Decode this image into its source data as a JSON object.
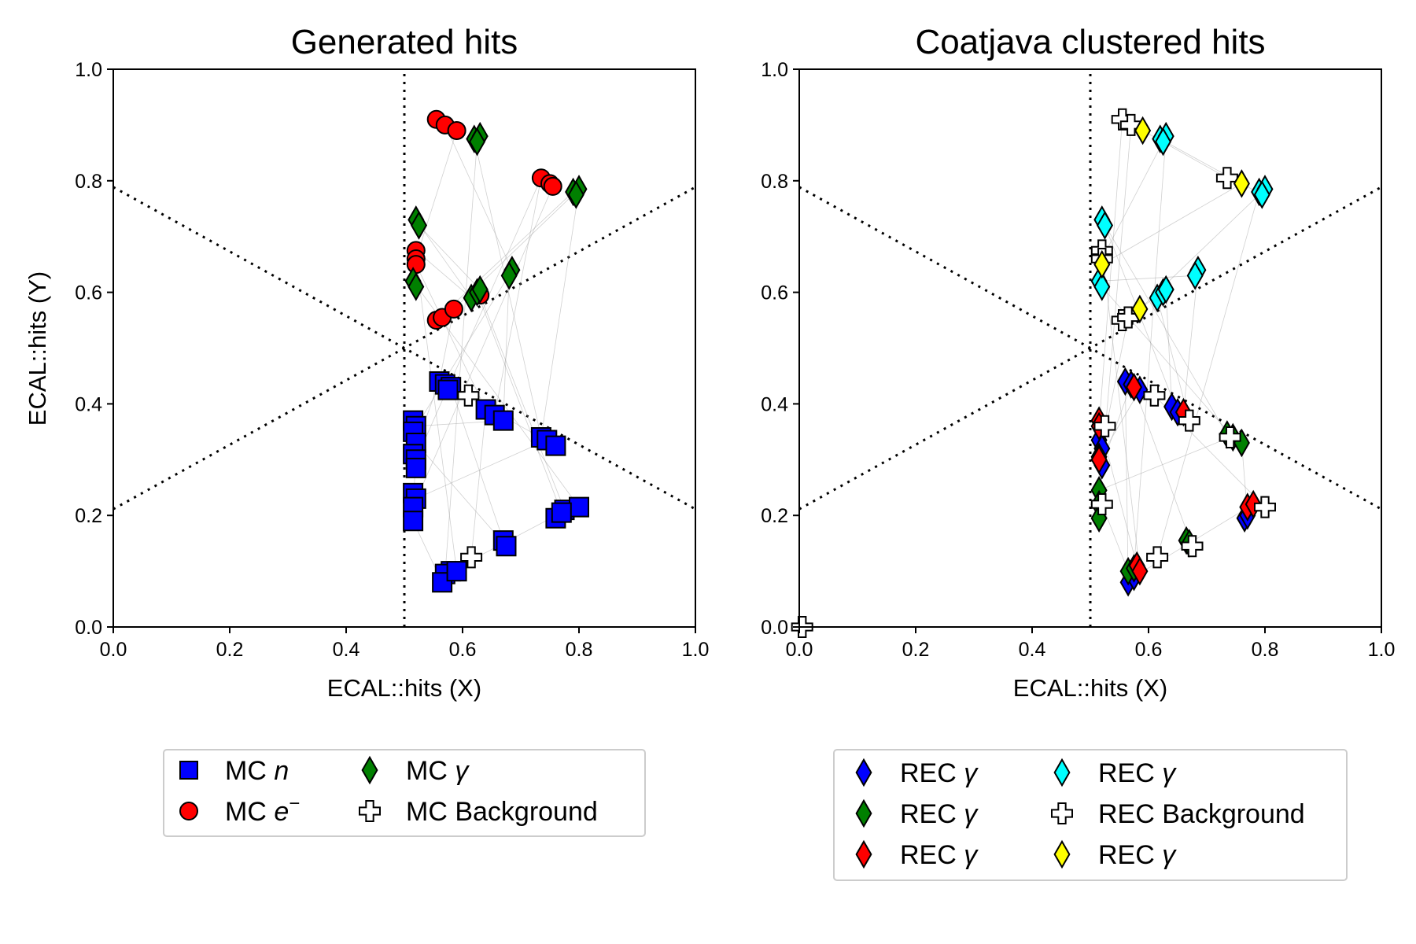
{
  "chart_data": [
    {
      "type": "scatter",
      "title": "Generated hits",
      "xlabel": "ECAL::hits (X)",
      "ylabel": "ECAL::hits (Y)",
      "xlim": [
        0.0,
        1.0
      ],
      "ylim": [
        0.0,
        1.0
      ],
      "xticks": [
        "0.0",
        "0.2",
        "0.4",
        "0.6",
        "0.8",
        "1.0"
      ],
      "yticks": [
        "0.0",
        "0.2",
        "0.4",
        "0.6",
        "0.8",
        "1.0"
      ],
      "grid": false,
      "legend_position": "below",
      "series": [
        {
          "name": "MC n",
          "label_main": "MC ",
          "label_italic": "n",
          "label_sup": "",
          "marker": "square",
          "color": "#0000ff",
          "points": [
            [
              0.56,
              0.44
            ],
            [
              0.57,
              0.435
            ],
            [
              0.58,
              0.43
            ],
            [
              0.575,
              0.425
            ],
            [
              0.64,
              0.39
            ],
            [
              0.655,
              0.38
            ],
            [
              0.67,
              0.37
            ],
            [
              0.515,
              0.37
            ],
            [
              0.52,
              0.36
            ],
            [
              0.515,
              0.35
            ],
            [
              0.52,
              0.33
            ],
            [
              0.515,
              0.31
            ],
            [
              0.52,
              0.3
            ],
            [
              0.52,
              0.285
            ],
            [
              0.735,
              0.34
            ],
            [
              0.745,
              0.335
            ],
            [
              0.76,
              0.325
            ],
            [
              0.515,
              0.24
            ],
            [
              0.52,
              0.23
            ],
            [
              0.515,
              0.215
            ],
            [
              0.515,
              0.19
            ],
            [
              0.76,
              0.195
            ],
            [
              0.775,
              0.21
            ],
            [
              0.8,
              0.215
            ],
            [
              0.77,
              0.205
            ],
            [
              0.67,
              0.155
            ],
            [
              0.675,
              0.145
            ],
            [
              0.58,
              0.1
            ],
            [
              0.57,
              0.095
            ],
            [
              0.565,
              0.08
            ],
            [
              0.59,
              0.1
            ]
          ]
        },
        {
          "name": "MC e-",
          "label_main": "MC ",
          "label_italic": "e",
          "label_sup": "−",
          "marker": "circle",
          "color": "#ff0000",
          "points": [
            [
              0.555,
              0.91
            ],
            [
              0.57,
              0.9
            ],
            [
              0.59,
              0.89
            ],
            [
              0.735,
              0.805
            ],
            [
              0.75,
              0.795
            ],
            [
              0.755,
              0.79
            ],
            [
              0.52,
              0.675
            ],
            [
              0.52,
              0.66
            ],
            [
              0.52,
              0.65
            ],
            [
              0.555,
              0.55
            ],
            [
              0.565,
              0.555
            ],
            [
              0.585,
              0.57
            ],
            [
              0.63,
              0.595
            ]
          ]
        },
        {
          "name": "MC γ",
          "label_main": "MC ",
          "label_italic": "γ",
          "label_sup": "",
          "marker": "diamond",
          "color": "#008000",
          "points": [
            [
              0.62,
              0.875
            ],
            [
              0.63,
              0.88
            ],
            [
              0.625,
              0.87
            ],
            [
              0.79,
              0.78
            ],
            [
              0.8,
              0.785
            ],
            [
              0.795,
              0.775
            ],
            [
              0.52,
              0.73
            ],
            [
              0.525,
              0.72
            ],
            [
              0.685,
              0.64
            ],
            [
              0.68,
              0.63
            ],
            [
              0.515,
              0.62
            ],
            [
              0.52,
              0.61
            ],
            [
              0.615,
              0.59
            ],
            [
              0.625,
              0.6
            ],
            [
              0.63,
              0.605
            ]
          ]
        },
        {
          "name": "MC Background",
          "label_main": "MC Background",
          "label_italic": "",
          "label_sup": "",
          "marker": "plus",
          "color": "#ffffff",
          "points": [
            [
              0.61,
              0.415
            ],
            [
              0.615,
              0.125
            ]
          ]
        }
      ]
    },
    {
      "type": "scatter",
      "title": "Coatjava clustered hits",
      "xlabel": "ECAL::hits (X)",
      "ylabel": "",
      "xlim": [
        0.0,
        1.0
      ],
      "ylim": [
        0.0,
        1.0
      ],
      "xticks": [
        "0.0",
        "0.2",
        "0.4",
        "0.6",
        "0.8",
        "1.0"
      ],
      "yticks": [
        "0.0",
        "0.2",
        "0.4",
        "0.6",
        "0.8",
        "1.0"
      ],
      "grid": false,
      "legend_position": "below",
      "series": [
        {
          "name": "REC γ (blue)",
          "label_main": "REC ",
          "label_italic": "γ",
          "label_sup": "",
          "marker": "diamond",
          "color": "#0000ff",
          "points": [
            [
              0.56,
              0.44
            ],
            [
              0.57,
              0.435
            ],
            [
              0.585,
              0.425
            ],
            [
              0.64,
              0.395
            ],
            [
              0.65,
              0.385
            ],
            [
              0.515,
              0.335
            ],
            [
              0.52,
              0.32
            ],
            [
              0.515,
              0.305
            ],
            [
              0.52,
              0.29
            ],
            [
              0.765,
              0.195
            ],
            [
              0.77,
              0.2
            ],
            [
              0.565,
              0.08
            ],
            [
              0.575,
              0.09
            ]
          ]
        },
        {
          "name": "REC γ (green)",
          "label_main": "REC ",
          "label_italic": "γ",
          "label_sup": "",
          "marker": "diamond",
          "color": "#008000",
          "points": [
            [
              0.735,
              0.345
            ],
            [
              0.745,
              0.34
            ],
            [
              0.76,
              0.33
            ],
            [
              0.515,
              0.245
            ],
            [
              0.515,
              0.22
            ],
            [
              0.515,
              0.195
            ],
            [
              0.665,
              0.155
            ],
            [
              0.67,
              0.15
            ],
            [
              0.565,
              0.1
            ],
            [
              0.575,
              0.105
            ]
          ]
        },
        {
          "name": "REC γ (red)",
          "label_main": "REC ",
          "label_italic": "γ",
          "label_sup": "",
          "marker": "diamond",
          "color": "#ff0000",
          "points": [
            [
              0.515,
              0.37
            ],
            [
              0.515,
              0.36
            ],
            [
              0.515,
              0.3
            ],
            [
              0.575,
              0.43
            ],
            [
              0.66,
              0.385
            ],
            [
              0.77,
              0.215
            ],
            [
              0.78,
              0.22
            ],
            [
              0.58,
              0.11
            ],
            [
              0.585,
              0.1
            ]
          ]
        },
        {
          "name": "REC γ (cyan)",
          "label_main": "REC ",
          "label_italic": "γ",
          "label_sup": "",
          "marker": "diamond",
          "color": "#00ffff",
          "points": [
            [
              0.62,
              0.875
            ],
            [
              0.63,
              0.88
            ],
            [
              0.625,
              0.87
            ],
            [
              0.79,
              0.78
            ],
            [
              0.8,
              0.785
            ],
            [
              0.795,
              0.775
            ],
            [
              0.52,
              0.73
            ],
            [
              0.525,
              0.72
            ],
            [
              0.685,
              0.64
            ],
            [
              0.68,
              0.63
            ],
            [
              0.515,
              0.62
            ],
            [
              0.52,
              0.61
            ],
            [
              0.615,
              0.59
            ],
            [
              0.625,
              0.6
            ],
            [
              0.63,
              0.605
            ]
          ]
        },
        {
          "name": "REC Background",
          "label_main": "REC Background",
          "label_italic": "",
          "label_sup": "",
          "marker": "plus",
          "color": "#ffffff",
          "points": [
            [
              0.555,
              0.91
            ],
            [
              0.57,
              0.9
            ],
            [
              0.735,
              0.805
            ],
            [
              0.52,
              0.675
            ],
            [
              0.52,
              0.66
            ],
            [
              0.555,
              0.55
            ],
            [
              0.565,
              0.555
            ],
            [
              0.61,
              0.415
            ],
            [
              0.67,
              0.37
            ],
            [
              0.525,
              0.36
            ],
            [
              0.74,
              0.34
            ],
            [
              0.52,
              0.22
            ],
            [
              0.8,
              0.215
            ],
            [
              0.615,
              0.125
            ],
            [
              0.675,
              0.145
            ],
            [
              0.005,
              0.0
            ]
          ]
        },
        {
          "name": "REC γ (yellow)",
          "label_main": "REC ",
          "label_italic": "γ",
          "label_sup": "",
          "marker": "diamond",
          "color": "#ffff00",
          "points": [
            [
              0.59,
              0.89
            ],
            [
              0.76,
              0.795
            ],
            [
              0.52,
              0.65
            ],
            [
              0.585,
              0.57
            ]
          ]
        }
      ]
    }
  ]
}
